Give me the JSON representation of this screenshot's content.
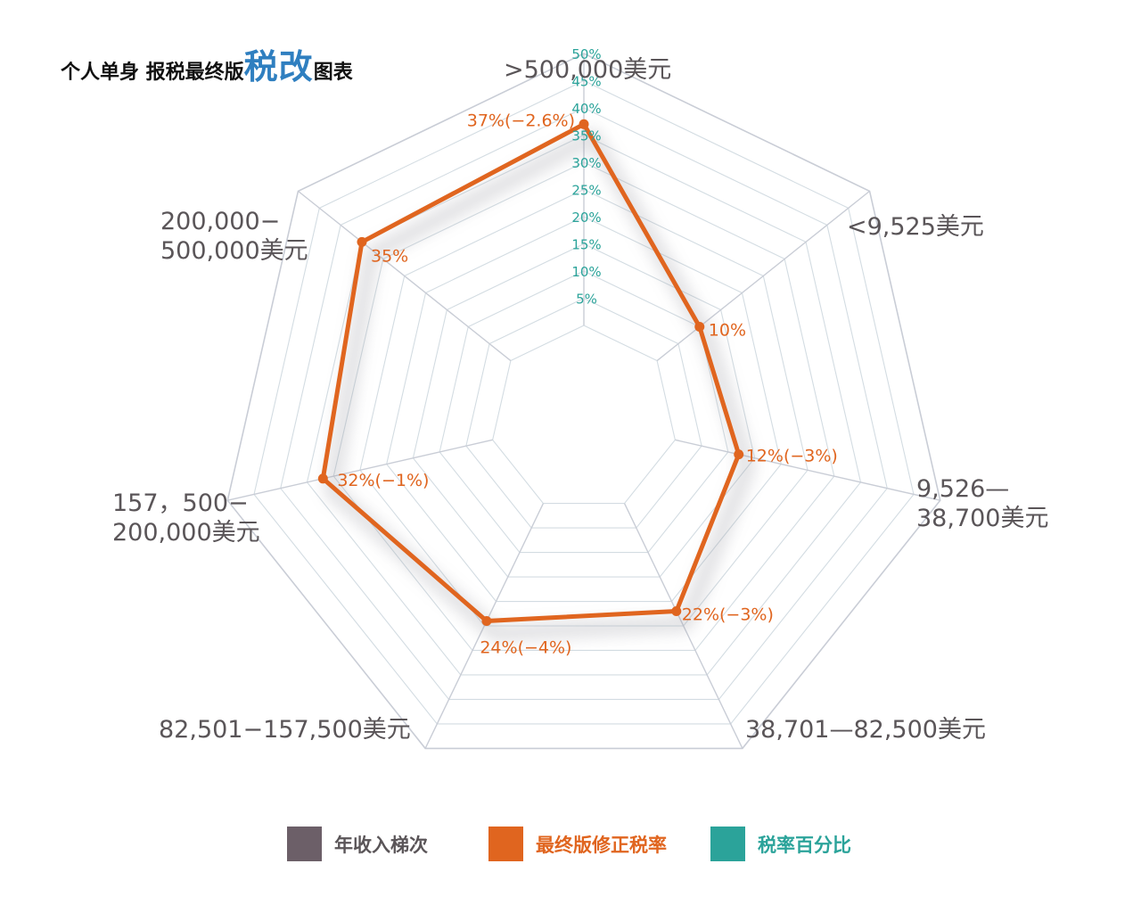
{
  "title": {
    "main": "个人单身 报税最终版",
    "accent": "税改",
    "end": "图表"
  },
  "colors": {
    "accent_blue": "#2f7fc0",
    "series_orange": "#e0651f",
    "scale_teal": "#2ba39a",
    "label_gray": "#5a5558",
    "grid": "#d3dce2"
  },
  "legend": [
    {
      "label": "年收入梯次",
      "color": "#6c5f68"
    },
    {
      "label": "最终版修正税率",
      "color": "#e0651f"
    },
    {
      "label": "税率百分比",
      "color": "#2ba39a"
    }
  ],
  "chart_data": {
    "type": "radar",
    "categories": [
      ">500,000美元",
      "<9,525美元",
      "9,526—38,700美元",
      "38,701—82,500美元",
      "82,501−157,500美元",
      "157，500−200,000美元",
      "200,000−500,000美元"
    ],
    "category_lines": [
      [
        ">500,000美元"
      ],
      [
        "<9,525美元"
      ],
      [
        "9,526—",
        "38,700美元"
      ],
      [
        "38,701—82,500美元"
      ],
      [
        "82,501−157,500美元"
      ],
      [
        "157，500−",
        "200,000美元"
      ],
      [
        "200,000−",
        "500,000美元"
      ]
    ],
    "values": [
      37,
      10,
      12,
      22,
      24,
      32,
      35
    ],
    "data_labels": [
      "37%(−2.6%)",
      "10%",
      "12%(−3%)",
      "22%(−3%)",
      "24%(−4%)",
      "32%(−1%)",
      "35%"
    ],
    "scale_ticks": [
      "5%",
      "10%",
      "15%",
      "20%",
      "25%",
      "30%",
      "35%",
      "40%",
      "45%",
      "50%"
    ],
    "tick_values": [
      5,
      10,
      15,
      20,
      25,
      30,
      35,
      40,
      45,
      50
    ],
    "range": [
      0,
      50
    ],
    "grid": true,
    "legend_position": "bottom"
  }
}
